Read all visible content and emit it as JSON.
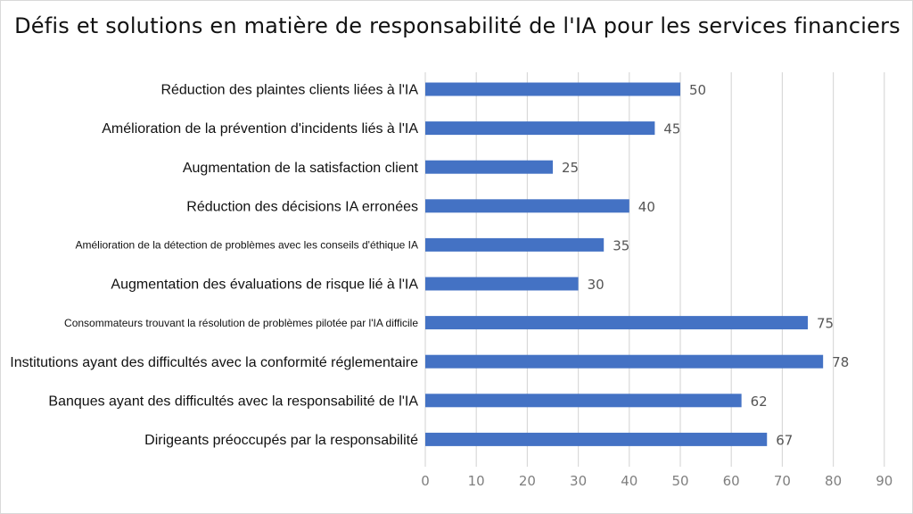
{
  "chart_data": {
    "type": "bar",
    "orientation": "horizontal",
    "title": "Défis et solutions en matière de responsabilité de l'IA pour les services financiers",
    "xlabel": "",
    "ylabel": "",
    "xlim": [
      0,
      90
    ],
    "xticks": [
      "0",
      "10",
      "20",
      "30",
      "40",
      "50",
      "60",
      "70",
      "80",
      "90"
    ],
    "grid": true,
    "categories": [
      "Réduction des plaintes clients liées à l'IA",
      "Amélioration de la prévention d'incidents liés à l'IA",
      "Augmentation de la satisfaction client",
      "Réduction des décisions IA erronées",
      "Amélioration de la détection de problèmes avec les conseils d'éthique IA",
      "Augmentation des évaluations de risque lié à l'IA",
      "Consommateurs trouvant la résolution de problèmes pilotée par l'IA difficile",
      "Institutions ayant des difficultés avec la conformité réglementaire",
      "Banques ayant des difficultés avec la responsabilité de l'IA",
      "Dirigeants préoccupés par la responsabilité"
    ],
    "values": [
      50,
      45,
      25,
      40,
      35,
      30,
      75,
      78,
      62,
      67
    ],
    "bar_color": "#4472c4"
  }
}
